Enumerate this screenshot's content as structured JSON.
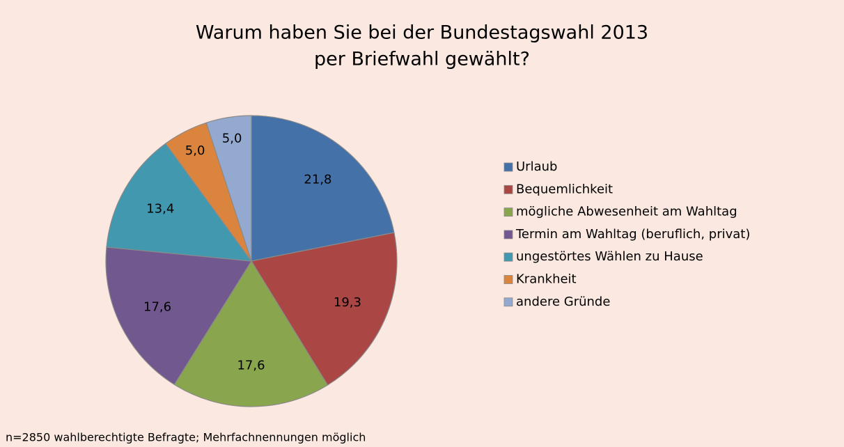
{
  "chart_data": {
    "type": "pie",
    "title": [
      "Warum haben Sie bei der Bundestagswahl 2013",
      "per Briefwahl gewählt?"
    ],
    "categories": [
      "Urlaub",
      "Bequemlichkeit",
      "mögliche Abwesenheit am Wahltag",
      "Termin am Wahltag (beruflich, privat)",
      "ungestörtes Wählen zu Hause",
      "Krankheit",
      "andere Gründe"
    ],
    "values": [
      21.8,
      19.3,
      17.6,
      17.6,
      13.4,
      5.0,
      5.0
    ],
    "value_labels": [
      "21,8",
      "19,3",
      "17,6",
      "17,6",
      "13,4",
      "5,0",
      "5,0"
    ],
    "colors": [
      "#4571a9",
      "#aa4644",
      "#89a54e",
      "#71588f",
      "#4198af",
      "#db843d",
      "#93a9cf"
    ],
    "legend": "right",
    "note": "n=2850 wahlberechtigte Befragte; Mehrfachnennungen möglich"
  }
}
